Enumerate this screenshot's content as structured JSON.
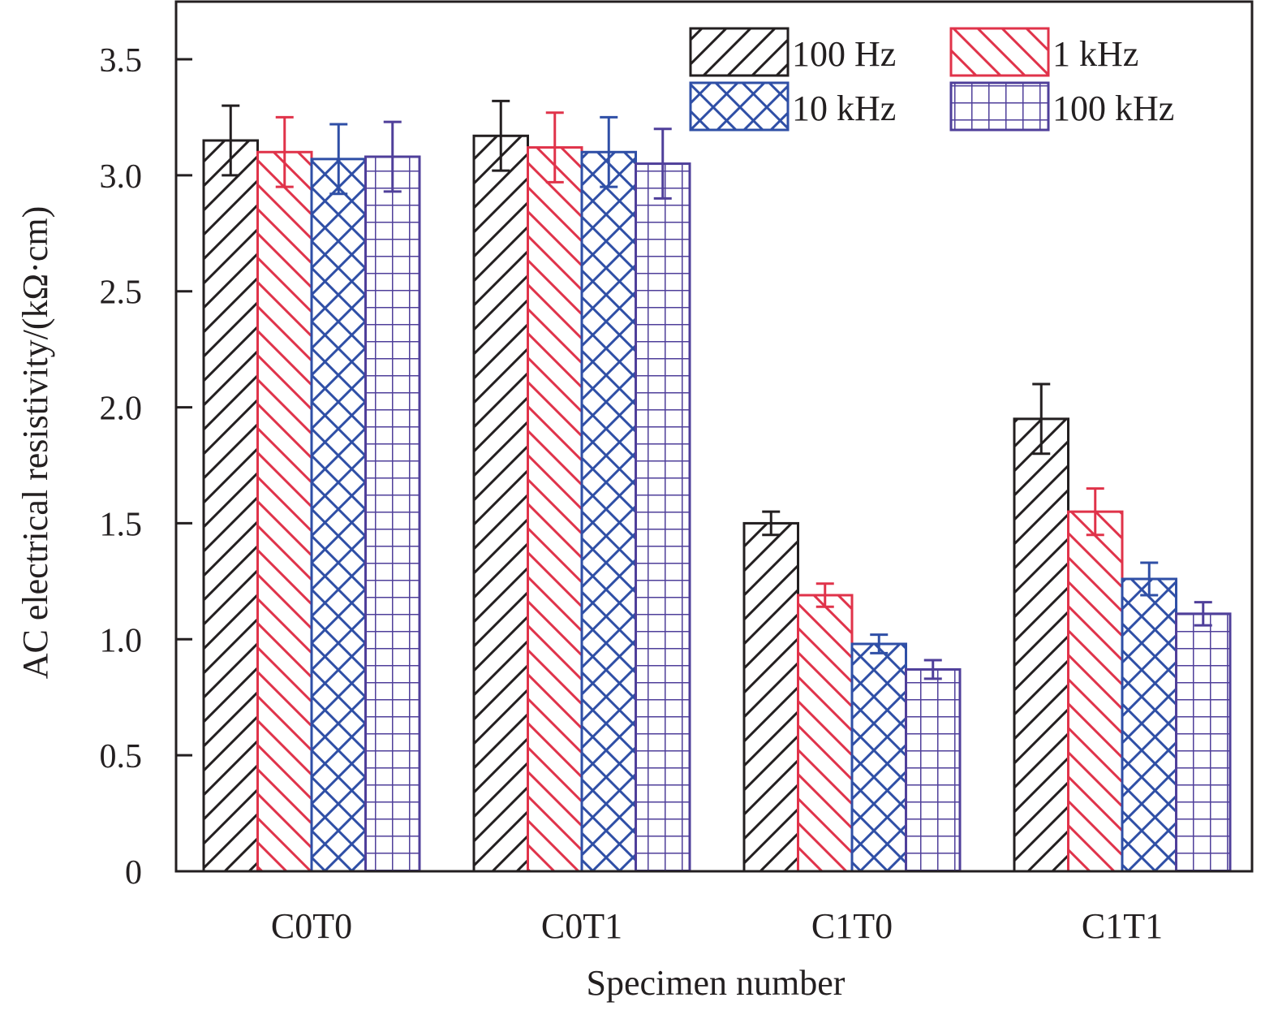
{
  "chart_data": {
    "type": "bar",
    "title": "",
    "xlabel": "Specimen number",
    "ylabel": "AC electrical resistivity/(kΩ·cm)",
    "ylim": [
      0,
      3.75
    ],
    "yticks": [
      0,
      0.5,
      1.0,
      1.5,
      2.0,
      2.5,
      3.0,
      3.5
    ],
    "ytick_labels": [
      "0",
      "0.5",
      "1.0",
      "1.5",
      "2.0",
      "2.5",
      "3.0",
      "3.5"
    ],
    "categories": [
      "C0T0",
      "C0T1",
      "C1T0",
      "C1T1"
    ],
    "grid": false,
    "legend_position": "top-right",
    "series": [
      {
        "name": "100 Hz",
        "color": "#231f20",
        "pattern": "forward-diagonal",
        "values": [
          3.15,
          3.17,
          1.5,
          1.95
        ],
        "errors": [
          0.15,
          0.15,
          0.05,
          0.15
        ]
      },
      {
        "name": "1 kHz",
        "color": "#e0334a",
        "pattern": "backward-diagonal",
        "values": [
          3.1,
          3.12,
          1.19,
          1.55
        ],
        "errors": [
          0.15,
          0.15,
          0.05,
          0.1
        ]
      },
      {
        "name": "10 kHz",
        "color": "#2f4fa6",
        "pattern": "crosshatch",
        "values": [
          3.07,
          3.1,
          0.98,
          1.26
        ],
        "errors": [
          0.15,
          0.15,
          0.04,
          0.07
        ]
      },
      {
        "name": "100 kHz",
        "color": "#4f3f9a",
        "pattern": "grid",
        "values": [
          3.08,
          3.05,
          0.87,
          1.11
        ],
        "errors": [
          0.15,
          0.15,
          0.04,
          0.05
        ]
      }
    ]
  }
}
